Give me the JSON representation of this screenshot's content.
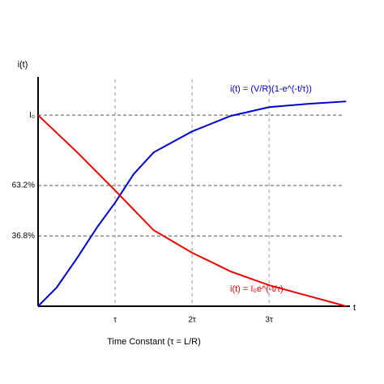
{
  "chart_data": {
    "type": "line",
    "xlabel": "Time Constant (τ = L/R)",
    "ylabel": "i(t)",
    "x_axis_symbol": "t",
    "xlim": [
      0,
      4.05
    ],
    "ylim": [
      0,
      120
    ],
    "xticks": [
      {
        "value": 1,
        "label": "τ"
      },
      {
        "value": 2,
        "label": "2τ"
      },
      {
        "value": 3,
        "label": "3τ"
      }
    ],
    "yticks": [
      {
        "value": 36.8,
        "label": "36.8%"
      },
      {
        "value": 63.2,
        "label": "63.2%"
      },
      {
        "value": 100,
        "label": "I₀"
      }
    ],
    "grid": true,
    "series": [
      {
        "name": "i(t) = (V/R)(1-e^(-t/τ))",
        "color": "#0000cc",
        "x": [
          0,
          0.24,
          0.51,
          0.77,
          1,
          1.24,
          1.5,
          2,
          2.5,
          3,
          3.5,
          4
        ],
        "values": [
          0,
          9.7,
          25.4,
          41.5,
          54.2,
          69.1,
          80.5,
          91.5,
          99.6,
          104.2,
          105.9,
          107.2
        ]
      },
      {
        "name": "i(t) = I₀e^(-t/τ)",
        "color": "#ee0000",
        "x": [
          0,
          0.51,
          1,
          1.5,
          2,
          2.5,
          3,
          3.5,
          4
        ],
        "values": [
          100,
          80.5,
          60.6,
          39.8,
          28,
          18.2,
          11,
          5.5,
          0
        ]
      }
    ]
  }
}
